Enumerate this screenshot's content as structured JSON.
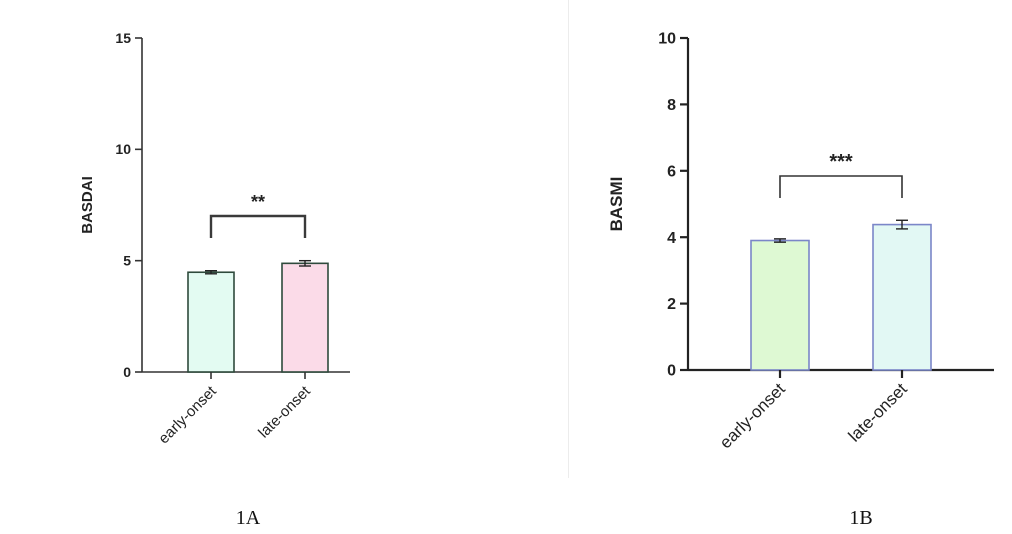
{
  "chart_data": [
    {
      "type": "bar",
      "panel_label": "1A",
      "ylabel": "BASDAI",
      "xlabel": "",
      "ylim": [
        0,
        15
      ],
      "yticks": [
        0,
        5,
        10,
        15
      ],
      "categories": [
        "early-onset",
        "late-onset"
      ],
      "values": [
        4.48,
        4.88
      ],
      "errors": [
        0.07,
        0.12
      ],
      "bar_colors": [
        "#e3fbf2",
        "#fbdbe8"
      ],
      "bar_edge": "#2e4a3c",
      "significance": {
        "from": 0,
        "to": 1,
        "label": "**"
      }
    },
    {
      "type": "bar",
      "panel_label": "1B",
      "ylabel": "BASMI",
      "xlabel": "",
      "ylim": [
        0,
        10
      ],
      "yticks": [
        0,
        2,
        4,
        6,
        8,
        10
      ],
      "categories": [
        "early-onset",
        "late-onset"
      ],
      "values": [
        3.9,
        4.38
      ],
      "errors": [
        0.05,
        0.13
      ],
      "bar_colors": [
        "#def9d3",
        "#e2f8f4"
      ],
      "bar_edge": "#7b86c8",
      "significance": {
        "from": 0,
        "to": 1,
        "label": "***"
      }
    }
  ]
}
